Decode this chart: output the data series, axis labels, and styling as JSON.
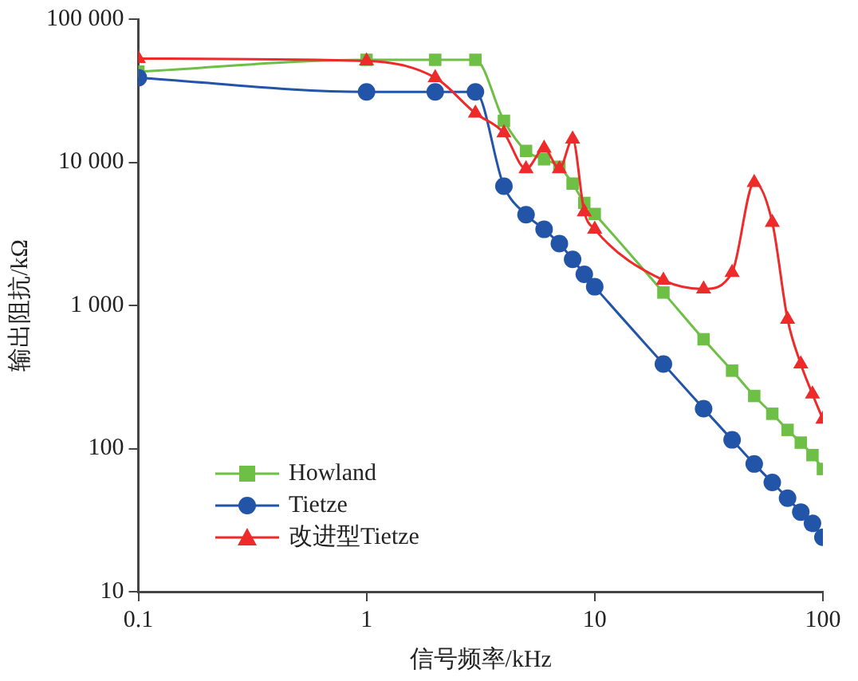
{
  "chart_data": {
    "type": "line",
    "xlabel": "信号频率/kHz",
    "ylabel": "输出阻抗/kΩ",
    "log": "xy",
    "xlim": [
      0.1,
      100
    ],
    "xticks": [
      0.1,
      1,
      10,
      100
    ],
    "ylim": [
      10,
      100000
    ],
    "yticks": [
      {
        "value": 10,
        "label": "10"
      },
      {
        "value": 100,
        "label": "100"
      },
      {
        "value": 1000,
        "label": "1 000"
      },
      {
        "value": 10000,
        "label": "10 000"
      },
      {
        "value": 100000,
        "label": "100 000"
      }
    ],
    "grid": false,
    "legend": "bottom left",
    "line_style": "solid",
    "x": [
      0.1,
      1,
      2,
      3,
      4,
      5,
      6,
      7,
      8,
      9,
      10,
      20,
      30,
      40,
      50,
      60,
      70,
      80,
      90,
      100
    ],
    "series": [
      {
        "name": "Howland",
        "color": "#6dbf45",
        "marker": "square",
        "values": [
          43000,
          52000,
          52000,
          52000,
          19500,
          12000,
          10500,
          9300,
          7100,
          5200,
          4350,
          1230,
          580,
          350,
          233,
          175,
          135,
          110,
          90,
          72
        ]
      },
      {
        "name": "Tietze",
        "color": "#2254a8",
        "marker": "circle",
        "values": [
          39000,
          31000,
          31000,
          31000,
          6800,
          4300,
          3400,
          2700,
          2100,
          1650,
          1350,
          390,
          190,
          115,
          78,
          58,
          45,
          36,
          30,
          24
        ]
      },
      {
        "name": "改进型Tietze",
        "color": "#ee2a2a",
        "marker": "triangle",
        "values": [
          53000,
          51000,
          39000,
          22000,
          16000,
          9000,
          12500,
          9000,
          14500,
          4500,
          3400,
          1500,
          1300,
          1700,
          7200,
          3800,
          800,
          390,
          240,
          160
        ]
      }
    ]
  }
}
